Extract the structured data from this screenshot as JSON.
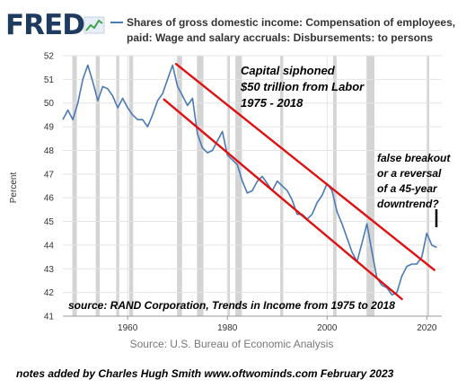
{
  "header": {
    "logo_text": "FRED",
    "legend_line1": "Shares of gross domestic income: Compensation of employees,",
    "legend_line2": "paid: Wage and salary accruals: Disbursements: to persons"
  },
  "annotations": {
    "title_line1": "Capital siphoned",
    "title_line2": "$50 trillion from Labor",
    "title_line3": "1975 - 2018",
    "question_line1": "false breakout",
    "question_line2": "or a reversal",
    "question_line3": "of a 45-year",
    "question_line4": "downtrend?",
    "source_note": "source: RAND Corporation,   Trends in Income from 1975 to 2018",
    "footer": "notes added by Charles Hugh Smith   www.oftwominds.com   February 2023"
  },
  "colors": {
    "series": "#4a7ab5",
    "recession": "#d4d4d4",
    "trend_channel": "#e01010",
    "grid": "#e4e4e4",
    "logo": "#1f3a5f"
  },
  "chart_data": {
    "type": "line",
    "ylabel": "Percent",
    "source": "Source: U.S. Bureau of Economic Analysis",
    "xlim": [
      1947,
      2023
    ],
    "ylim": [
      41,
      52
    ],
    "x_ticks": [
      1960,
      1980,
      2000,
      2020
    ],
    "y_ticks": [
      41,
      42,
      43,
      44,
      45,
      46,
      47,
      48,
      49,
      50,
      51,
      52
    ],
    "grid": true,
    "recessions": [
      [
        1948.9,
        1949.8
      ],
      [
        1953.6,
        1954.4
      ],
      [
        1957.7,
        1958.3
      ],
      [
        1960.3,
        1961.1
      ],
      [
        1969.9,
        1970.9
      ],
      [
        1973.9,
        1975.2
      ],
      [
        1980.0,
        1980.5
      ],
      [
        1981.6,
        1982.9
      ],
      [
        1990.6,
        1991.2
      ],
      [
        2001.2,
        2001.9
      ],
      [
        2007.9,
        2009.5
      ],
      [
        2020.1,
        2020.4
      ]
    ],
    "series": [
      {
        "x": [
          1947,
          1948,
          1949,
          1950,
          1951,
          1952,
          1953,
          1954,
          1955,
          1956,
          1957,
          1958,
          1959,
          1960,
          1961,
          1962,
          1963,
          1964,
          1965,
          1966,
          1967,
          1968,
          1969,
          1970,
          1971,
          1972,
          1973,
          1974,
          1975,
          1976,
          1977,
          1978,
          1979,
          1980,
          1981,
          1982,
          1983,
          1984,
          1985,
          1986,
          1987,
          1988,
          1989,
          1990,
          1991,
          1992,
          1993,
          1994,
          1995,
          1996,
          1997,
          1998,
          1999,
          2000,
          2001,
          2002,
          2003,
          2004,
          2005,
          2006,
          2007,
          2008,
          2009,
          2010,
          2011,
          2012,
          2013,
          2014,
          2015,
          2016,
          2017,
          2018,
          2019,
          2020,
          2021,
          2022
        ],
        "values": [
          49.3,
          49.7,
          49.3,
          50.0,
          51.0,
          51.6,
          50.9,
          50.1,
          50.7,
          50.6,
          50.3,
          49.8,
          50.2,
          49.8,
          49.5,
          49.3,
          49.3,
          49.0,
          49.5,
          50.1,
          50.4,
          51.0,
          51.6,
          50.7,
          50.3,
          49.9,
          50.2,
          48.7,
          48.1,
          47.9,
          48.0,
          48.4,
          48.8,
          47.8,
          47.6,
          47.4,
          46.7,
          46.2,
          46.3,
          46.7,
          46.9,
          46.6,
          46.3,
          46.7,
          46.5,
          46.3,
          45.9,
          45.3,
          45.3,
          45.1,
          45.3,
          45.8,
          46.1,
          46.6,
          46.3,
          45.4,
          44.9,
          44.3,
          43.7,
          43.3,
          44.1,
          44.9,
          43.7,
          42.6,
          42.3,
          42.2,
          41.9,
          42.0,
          42.7,
          43.1,
          43.2,
          43.2,
          43.5,
          44.5,
          44.0,
          43.9
        ]
      }
    ],
    "trend_lines": [
      {
        "x": [
          1969.7,
          2021.5
        ],
        "y": [
          51.65,
          42.95
        ]
      },
      {
        "x": [
          1967.3,
          2015.0
        ],
        "y": [
          50.15,
          41.72
        ]
      }
    ]
  }
}
